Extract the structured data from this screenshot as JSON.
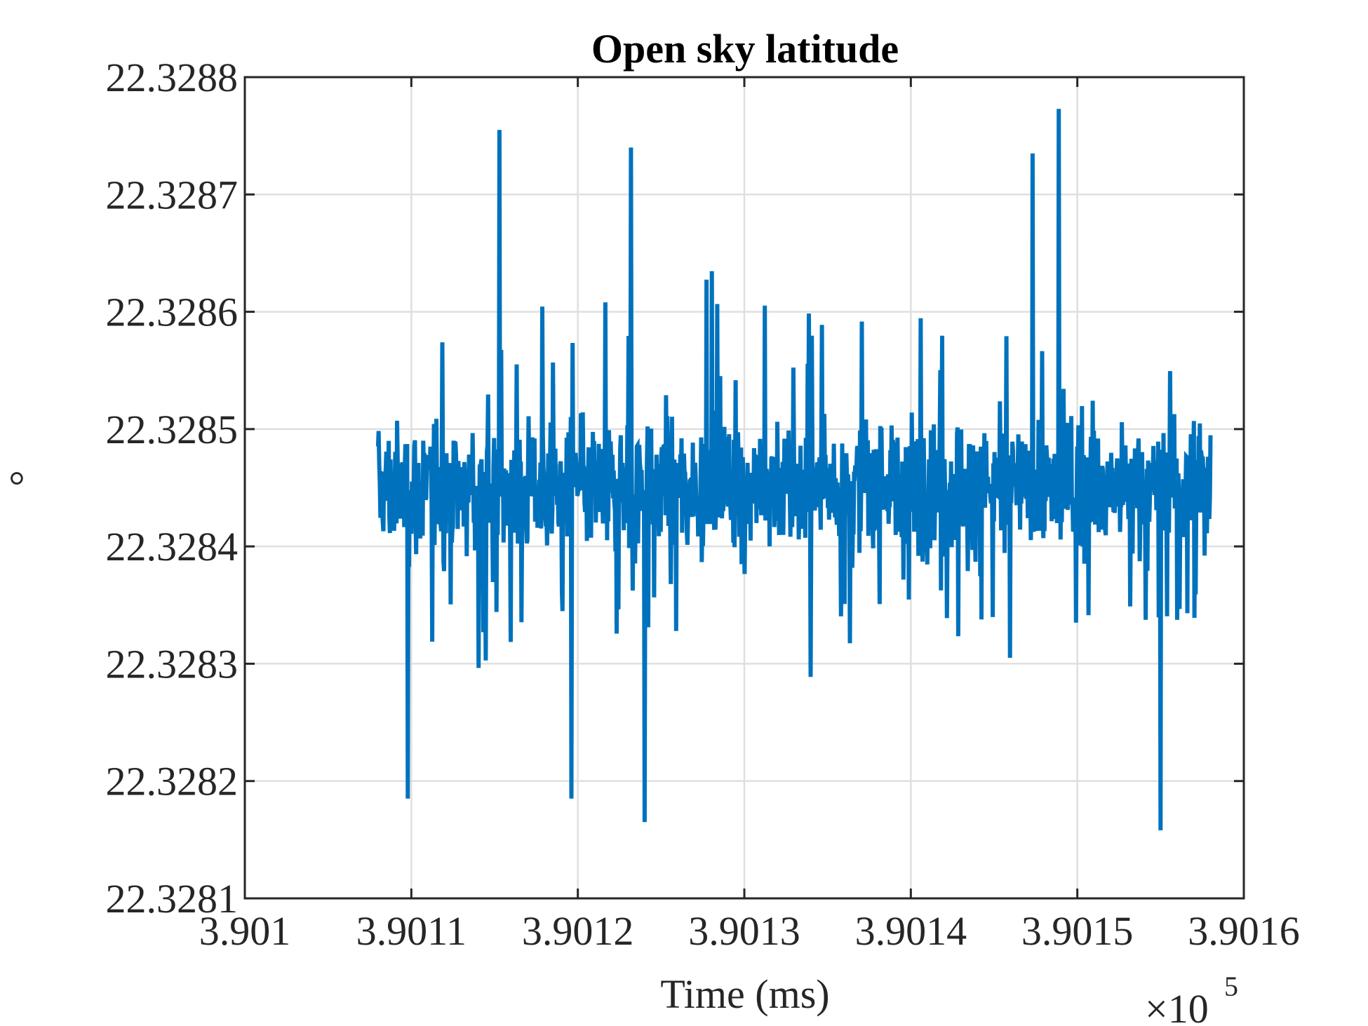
{
  "chart_data": {
    "type": "line",
    "title": "Open sky latitude",
    "xlabel": "Time (ms)",
    "ylabel": "°",
    "x_exponent_base": "×10",
    "x_exponent_power": "5",
    "xlim": [
      3.901,
      3.9016
    ],
    "ylim": [
      22.3281,
      22.3288
    ],
    "x_ticks": [
      3.901,
      3.9011,
      3.9012,
      3.9013,
      3.9014,
      3.9015,
      3.9016
    ],
    "x_tick_labels": [
      "3.901",
      "3.9011",
      "3.9012",
      "3.9013",
      "3.9014",
      "3.9015",
      "3.9016"
    ],
    "y_ticks": [
      22.3281,
      22.3282,
      22.3283,
      22.3284,
      22.3285,
      22.3286,
      22.3287,
      22.3288
    ],
    "y_tick_labels": [
      "22.3281",
      "22.3282",
      "22.3283",
      "22.3284",
      "22.3285",
      "22.3286",
      "22.3287",
      "22.3288"
    ],
    "grid": true,
    "legend": "none",
    "series": [
      {
        "color": "#0072BD",
        "x_range": [
          3.90108,
          3.90158
        ],
        "mean": 22.32845,
        "min": 22.328158,
        "max": 22.328773,
        "spike_highs": [
          [
            3.901153,
            22.328755
          ],
          [
            3.901232,
            22.32874
          ],
          [
            3.901489,
            22.328773
          ],
          [
            3.901473,
            22.328735
          ]
        ],
        "spike_lows": [
          [
            3.901098,
            22.328185
          ],
          [
            3.90124,
            22.328165
          ],
          [
            3.90155,
            22.328158
          ],
          [
            3.901196,
            22.328185
          ]
        ]
      }
    ]
  },
  "colors": {
    "line": "#0072BD",
    "grid": "#DFDFDF",
    "axes": "#262626",
    "background": "#FFFFFF"
  }
}
